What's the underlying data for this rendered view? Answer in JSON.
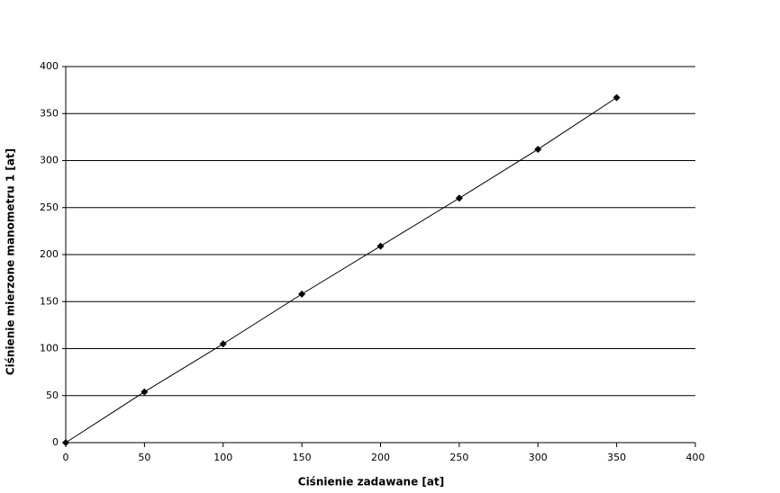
{
  "chart_data": {
    "type": "line",
    "marker": "diamond",
    "color": "#000000",
    "xlabel": "Ciśnienie zadawane [at]",
    "ylabel": "Ciśnienie mierzone manometru 1 [at]",
    "x": [
      0,
      50,
      100,
      150,
      200,
      250,
      300,
      350
    ],
    "series": [
      {
        "color": "#000000",
        "values": [
          0,
          54,
          105,
          158,
          209,
          260,
          312,
          367
        ]
      }
    ],
    "xlim": [
      0,
      400
    ],
    "xticks": [
      0,
      50,
      100,
      150,
      200,
      250,
      300,
      350,
      400
    ],
    "ylim": [
      0,
      400
    ],
    "yticks": [
      0,
      50,
      100,
      150,
      200,
      250,
      300,
      350,
      400
    ],
    "grid": true
  }
}
